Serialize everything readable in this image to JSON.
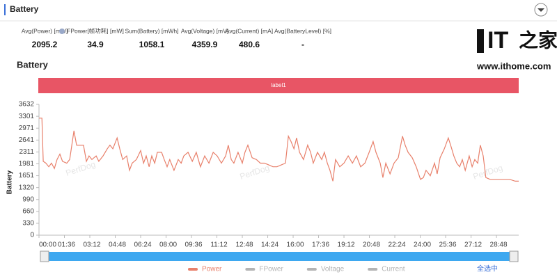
{
  "header": {
    "title": "Battery"
  },
  "stats": [
    {
      "label": "Avg(Power) [mW]",
      "value": 2095.2
    },
    {
      "label": "FPower[帧功耗] [mW]",
      "value": 34.9
    },
    {
      "label": "Sum(Battery) [mWh]",
      "value": 1058.1
    },
    {
      "label": "Avg(Voltage) [mV]",
      "value": 4359.9
    },
    {
      "label": "Avg(Current) [mA]",
      "value": 480.6
    },
    {
      "label": "Avg(BatteryLevel) [%]",
      "value": "-"
    }
  ],
  "logo": {
    "mark": "IT",
    "brand": "之家",
    "url": "www.ithome.com"
  },
  "watermark": "PerfDog",
  "select_all": "全选中",
  "chart_data": {
    "type": "line",
    "title": "Battery",
    "banner": "label1",
    "ylabel": "Battery",
    "x": [
      0,
      11,
      16,
      26,
      37,
      47,
      58,
      68,
      79,
      89,
      105,
      116,
      132,
      142,
      153,
      168,
      179,
      189,
      200,
      216,
      226,
      242,
      258,
      268,
      279,
      295,
      305,
      316,
      331,
      342,
      352,
      368,
      384,
      395,
      405,
      416,
      426,
      437,
      447,
      463,
      473,
      484,
      494,
      510,
      526,
      537,
      547,
      563,
      579,
      594,
      610,
      626,
      642,
      658,
      673,
      689,
      705,
      715,
      726,
      736,
      752,
      768,
      778,
      789,
      805,
      821,
      836,
      852,
      868,
      884,
      899,
      915,
      931,
      942,
      952,
      963,
      973,
      984,
      999,
      1015,
      1026,
      1036,
      1052,
      1068,
      1078,
      1089,
      1099,
      1110,
      1120,
      1136,
      1152,
      1168,
      1184,
      1199,
      1215,
      1231,
      1247,
      1262,
      1273,
      1289,
      1299,
      1310,
      1326,
      1341,
      1357,
      1373,
      1383,
      1394,
      1410,
      1425,
      1441,
      1452,
      1462,
      1478,
      1494,
      1504,
      1515,
      1531,
      1546,
      1557,
      1567,
      1578,
      1589,
      1599,
      1610,
      1625,
      1636,
      1646,
      1657,
      1667,
      1678,
      1688,
      1704,
      1725,
      1752,
      1778,
      1799,
      1812
    ],
    "series": [
      {
        "name": "Power",
        "color": "#e8806b",
        "values": [
          3250,
          3250,
          2050,
          2000,
          1900,
          2000,
          1850,
          2100,
          2250,
          2050,
          2000,
          2100,
          2900,
          2500,
          2500,
          2500,
          2050,
          2200,
          2100,
          2200,
          2050,
          2200,
          2400,
          2500,
          2400,
          2700,
          2400,
          2100,
          2200,
          1800,
          2000,
          2100,
          2350,
          2000,
          2200,
          1900,
          2200,
          2000,
          2300,
          2300,
          2100,
          1900,
          2100,
          1800,
          2100,
          2000,
          2200,
          2300,
          2050,
          2300,
          1900,
          2200,
          2000,
          2300,
          2200,
          2000,
          2200,
          2500,
          2100,
          2000,
          2300,
          2000,
          2300,
          2500,
          2150,
          2100,
          2000,
          2000,
          1950,
          1900,
          1900,
          1950,
          2000,
          2750,
          2600,
          2400,
          2700,
          2300,
          2100,
          2500,
          2300,
          2000,
          2300,
          2100,
          2300,
          2000,
          1800,
          1500,
          2100,
          1900,
          2000,
          2200,
          2000,
          2200,
          1900,
          2000,
          2300,
          2600,
          2300,
          2000,
          1600,
          2000,
          1700,
          2000,
          2150,
          2750,
          2500,
          2300,
          2150,
          1900,
          1550,
          1600,
          1800,
          1650,
          2000,
          1700,
          2150,
          2400,
          2700,
          2450,
          2200,
          2000,
          1900,
          2100,
          1800,
          2200,
          1900,
          2100,
          2000,
          2500,
          2200,
          1600,
          1550,
          1550,
          1550,
          1550,
          1500,
          1500
        ]
      }
    ],
    "hidden_series": [
      {
        "name": "FPower"
      },
      {
        "name": "Voltage"
      },
      {
        "name": "Current"
      }
    ],
    "hidden_color": "#b4b4b4",
    "banner_color": "#e85565",
    "xlim": [
      0,
      1812
    ],
    "xticks": [
      {
        "value": 0,
        "label": "00:00"
      },
      {
        "value": 96,
        "label": "01:36"
      },
      {
        "value": 192,
        "label": "03:12"
      },
      {
        "value": 288,
        "label": "04:48"
      },
      {
        "value": 384,
        "label": "06:24"
      },
      {
        "value": 480,
        "label": "08:00"
      },
      {
        "value": 576,
        "label": "09:36"
      },
      {
        "value": 672,
        "label": "11:12"
      },
      {
        "value": 768,
        "label": "12:48"
      },
      {
        "value": 864,
        "label": "14:24"
      },
      {
        "value": 960,
        "label": "16:00"
      },
      {
        "value": 1056,
        "label": "17:36"
      },
      {
        "value": 1152,
        "label": "19:12"
      },
      {
        "value": 1248,
        "label": "20:48"
      },
      {
        "value": 1344,
        "label": "22:24"
      },
      {
        "value": 1440,
        "label": "24:00"
      },
      {
        "value": 1536,
        "label": "25:36"
      },
      {
        "value": 1632,
        "label": "27:12"
      },
      {
        "value": 1728,
        "label": "28:48"
      }
    ],
    "ylim": [
      0,
      3632
    ],
    "yticks": [
      0,
      330,
      660,
      990,
      1320,
      1651,
      1981,
      2311,
      2641,
      2971,
      3301,
      3632
    ],
    "grid": false
  }
}
